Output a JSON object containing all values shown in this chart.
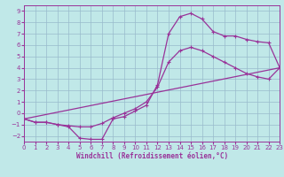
{
  "bg_color": "#c0e8e8",
  "line_color": "#993399",
  "grid_color": "#99bbcc",
  "xlabel": "Windchill (Refroidissement éolien,°C)",
  "xlim": [
    0,
    23
  ],
  "ylim": [
    -2.5,
    9.5
  ],
  "yticks": [
    -2,
    -1,
    0,
    1,
    2,
    3,
    4,
    5,
    6,
    7,
    8,
    9
  ],
  "xticks": [
    0,
    1,
    2,
    3,
    4,
    5,
    6,
    7,
    8,
    9,
    10,
    11,
    12,
    13,
    14,
    15,
    16,
    17,
    18,
    19,
    20,
    21,
    22,
    23
  ],
  "curve1_x": [
    0,
    1,
    2,
    3,
    4,
    5,
    6,
    7,
    8,
    9,
    10,
    11,
    12,
    13,
    14,
    15,
    16,
    17,
    18,
    19,
    20,
    21,
    22,
    23
  ],
  "curve1_y": [
    -0.5,
    -0.8,
    -0.8,
    -1.0,
    -1.2,
    -2.2,
    -2.3,
    -2.3,
    -0.5,
    -0.3,
    0.2,
    0.7,
    2.5,
    7.0,
    8.5,
    8.8,
    8.3,
    7.2,
    6.8,
    6.8,
    6.5,
    6.3,
    6.2,
    4.0
  ],
  "curve2_x": [
    0,
    1,
    2,
    3,
    4,
    5,
    6,
    7,
    8,
    9,
    10,
    11,
    12,
    13,
    14,
    15,
    16,
    17,
    18,
    19,
    20,
    21,
    22,
    23
  ],
  "curve2_y": [
    -0.5,
    -0.8,
    -0.8,
    -1.0,
    -1.1,
    -1.2,
    -1.2,
    -0.9,
    -0.4,
    0.0,
    0.4,
    1.0,
    2.3,
    4.5,
    5.5,
    5.8,
    5.5,
    5.0,
    4.5,
    4.0,
    3.5,
    3.2,
    3.0,
    4.0
  ],
  "line_x": [
    0,
    23
  ],
  "line_y": [
    -0.5,
    4.0
  ],
  "tick_fontsize": 5.0,
  "label_fontsize": 5.5,
  "linewidth": 0.9,
  "markersize": 2.5
}
